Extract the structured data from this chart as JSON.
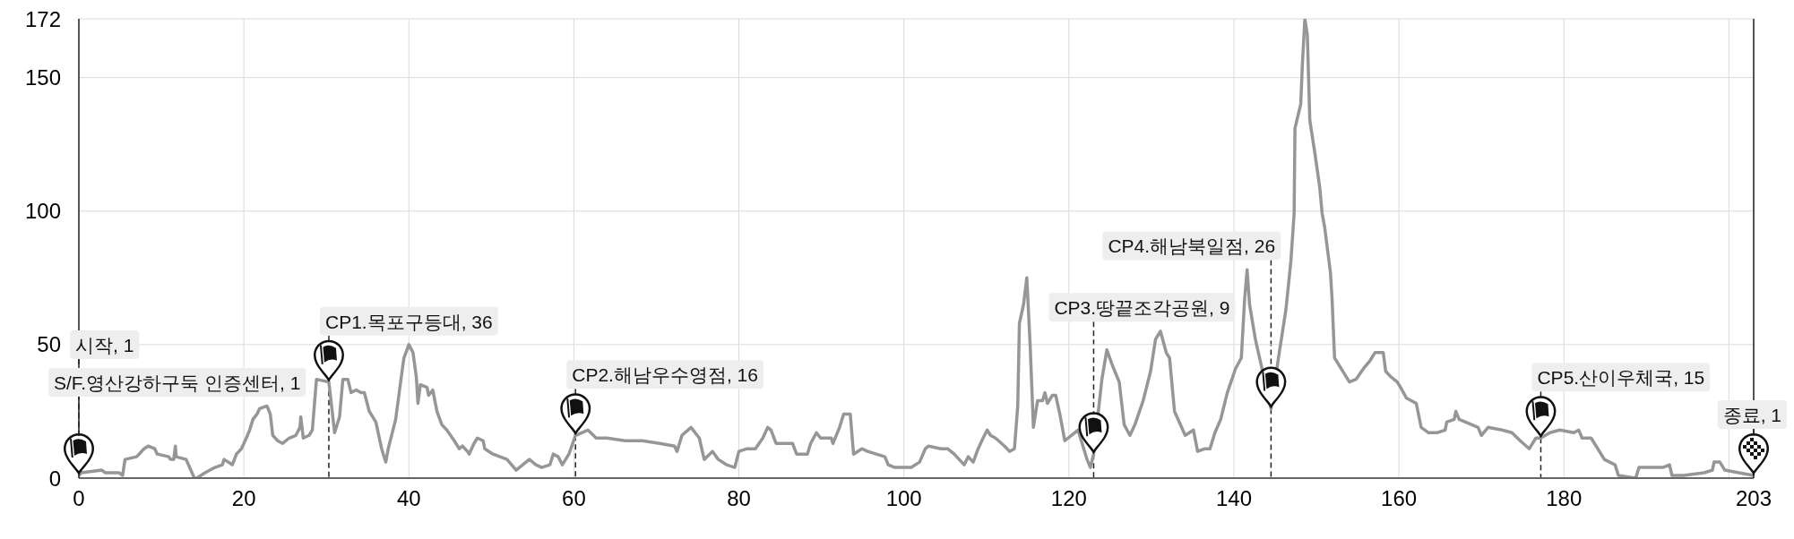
{
  "chart_data": {
    "type": "line",
    "color": "#969696",
    "x": [
      0,
      0.3,
      2.8,
      3.2,
      4.9,
      5.3,
      5.6,
      7.0,
      7.9,
      8.4,
      9.2,
      9.5,
      10.9,
      11.1,
      11.5,
      11.7,
      11.8,
      13.0,
      14.0,
      14.3,
      15.3,
      16.5,
      17.4,
      17.6,
      18.6,
      19.1,
      19.7,
      20.3,
      20.7,
      21.1,
      21.6,
      21.9,
      22.8,
      23.2,
      23.5,
      24.1,
      24.7,
      25.5,
      26.3,
      26.8,
      26.9,
      27.2,
      27.9,
      28.3,
      28.8,
      30.3,
      31.0,
      31.6,
      32.0,
      32.6,
      33.0,
      33.6,
      34.2,
      34.6,
      35.2,
      36.0,
      36.7,
      37.2,
      37.5,
      38.4,
      39.0,
      39.4,
      40.0,
      40.5,
      40.9,
      41.1,
      41.4,
      42.2,
      42.4,
      42.9,
      43.4,
      44.0,
      44.6,
      45.5,
      46.1,
      46.5,
      47.1,
      47.3,
      47.9,
      48.3,
      49.0,
      49.2,
      50.2,
      51.9,
      53.0,
      53.8,
      54.6,
      55.4,
      56.1,
      57.1,
      57.5,
      58.1,
      58.6,
      59.4,
      60.2,
      61.7,
      62.7,
      64.0,
      66.2,
      68.3,
      70.4,
      72.2,
      72.5,
      73.1,
      74.2,
      75.2,
      75.8,
      76.8,
      77.5,
      78.5,
      79.5,
      80.0,
      81.0,
      82.0,
      82.9,
      83.5,
      83.9,
      84.5,
      85.7,
      86.5,
      87.0,
      88.3,
      88.7,
      89.4,
      89.9,
      91.2,
      91.4,
      92.2,
      92.7,
      93.5,
      93.9,
      94.9,
      95.6,
      97.7,
      98.1,
      98.9,
      100.9,
      101.9,
      102.6,
      103.0,
      104.5,
      105.3,
      106.1,
      107.3,
      107.8,
      108.4,
      109.0,
      109.6,
      110.1,
      110.5,
      111.1,
      112.2,
      112.8,
      113.4,
      113.8,
      114.0,
      114.5,
      114.9,
      115.3,
      115.7,
      116.2,
      116.8,
      117.1,
      117.4,
      118.0,
      118.4,
      118.9,
      119.5,
      120.3,
      121.1,
      122.2,
      122.6,
      123.0,
      124.0,
      124.6,
      125.3,
      126.1,
      126.7,
      127.4,
      128.0,
      129.0,
      129.9,
      130.5,
      131.1,
      131.8,
      132.2,
      132.8,
      134.1,
      135.1,
      135.6,
      136.5,
      137.1,
      137.7,
      138.4,
      139.2,
      140.2,
      140.9,
      141.3,
      141.6,
      141.9,
      142.6,
      144.5,
      145.4,
      146.3,
      146.9,
      147.3,
      147.4,
      148.1,
      148.3,
      148.6,
      148.9,
      149.2,
      149.8,
      150.4,
      150.7,
      151.0,
      151.7,
      151.9,
      152.2,
      153.2,
      154.0,
      154.8,
      155.7,
      156.5,
      157.1,
      158.1,
      158.4,
      159.0,
      159.8,
      160.2,
      160.9,
      162.1,
      162.7,
      163.6,
      164.6,
      165.6,
      165.8,
      166.7,
      166.9,
      167.3,
      169.6,
      170.0,
      170.8,
      172.5,
      173.7,
      174.7,
      175.8,
      176.6,
      177.2,
      178.3,
      179.5,
      181.2,
      181.8,
      182.2,
      183.3,
      184.1,
      184.9,
      186.2,
      186.6,
      188.7,
      189.1,
      192.0,
      192.8,
      193.1,
      194.5,
      197.0,
      198.0,
      198.2,
      198.9,
      199.5,
      201.2,
      203.0
    ],
    "values": [
      1,
      2,
      3,
      2,
      2,
      1,
      7,
      8,
      11,
      12,
      11,
      9,
      8,
      7,
      7,
      12,
      8,
      7,
      0,
      0,
      2,
      4,
      5,
      7,
      5,
      9,
      11,
      15,
      18,
      22,
      24,
      26,
      27,
      24,
      16,
      14,
      13,
      15,
      16,
      19,
      23,
      15,
      16,
      18,
      37,
      36,
      17,
      23,
      37,
      37,
      32,
      33,
      32,
      32,
      25,
      21,
      11,
      6,
      11,
      22,
      36,
      45,
      50,
      47,
      38,
      28,
      35,
      34,
      31,
      33,
      25,
      20,
      18,
      14,
      11,
      12,
      10,
      9,
      13,
      15,
      14,
      11,
      9,
      7,
      3,
      5,
      7,
      5,
      4,
      5,
      9,
      8,
      5,
      9,
      16,
      18,
      15,
      15,
      14,
      14,
      13,
      12,
      10,
      16,
      19,
      15,
      7,
      10,
      7,
      5,
      4,
      10,
      11,
      11,
      15,
      19,
      18,
      13,
      13,
      13,
      9,
      9,
      13,
      17,
      15,
      15,
      13,
      19,
      24,
      24,
      9,
      11,
      10,
      8,
      5,
      4,
      4,
      6,
      11,
      12,
      11,
      11,
      9,
      5,
      8,
      6,
      11,
      15,
      18,
      16,
      15,
      12,
      10,
      11,
      27,
      58,
      65,
      75,
      50,
      19,
      29,
      29,
      32,
      28,
      31,
      31,
      24,
      14,
      16,
      18,
      7,
      4,
      9,
      37,
      48,
      42,
      36,
      20,
      16,
      20,
      29,
      40,
      52,
      55,
      47,
      45,
      25,
      16,
      18,
      10,
      11,
      11,
      17,
      22,
      32,
      41,
      45,
      67,
      78,
      65,
      52,
      26,
      45,
      63,
      81,
      99,
      131,
      140,
      155,
      172,
      166,
      134,
      122,
      109,
      99,
      94,
      77,
      67,
      45,
      40,
      36,
      37,
      41,
      44,
      47,
      47,
      40,
      38,
      36,
      34,
      30,
      28,
      19,
      17,
      17,
      18,
      21,
      22,
      25,
      22,
      19,
      16,
      19,
      18,
      17,
      14,
      11,
      15,
      15,
      17,
      18,
      17,
      18,
      15,
      15,
      11,
      7,
      5,
      1,
      0,
      4,
      4,
      5,
      1,
      1,
      2,
      3,
      6,
      6,
      3,
      2,
      1
    ],
    "xlim": [
      0,
      203
    ],
    "xticks": [
      0,
      20,
      40,
      60,
      80,
      100,
      120,
      140,
      160,
      180,
      {
        "value": 200,
        "label": null
      },
      203
    ],
    "ylim": [
      0,
      172
    ],
    "yticks": [
      0,
      50,
      100,
      150,
      172
    ],
    "grid": true,
    "annotations": [
      {
        "text": "시작, 1",
        "x": 0,
        "y": 1
      },
      {
        "text": "S/F.영산강하구둑 인증센터, 1",
        "x": 0,
        "y": 1
      },
      {
        "text": "CP1.목포구등대, 36",
        "x": 30.3,
        "y": 36
      },
      {
        "text": "CP2.해남우수영점, 16",
        "x": 60.2,
        "y": 16
      },
      {
        "text": "CP3.땅끝조각공원, 9",
        "x": 123,
        "y": 9
      },
      {
        "text": "CP4.해남북일점, 26",
        "x": 144.5,
        "y": 26
      },
      {
        "text": "CP5.산이우체국, 15",
        "x": 177.2,
        "y": 15
      },
      {
        "text": "종료, 1",
        "x": 203,
        "y": 1
      }
    ]
  }
}
